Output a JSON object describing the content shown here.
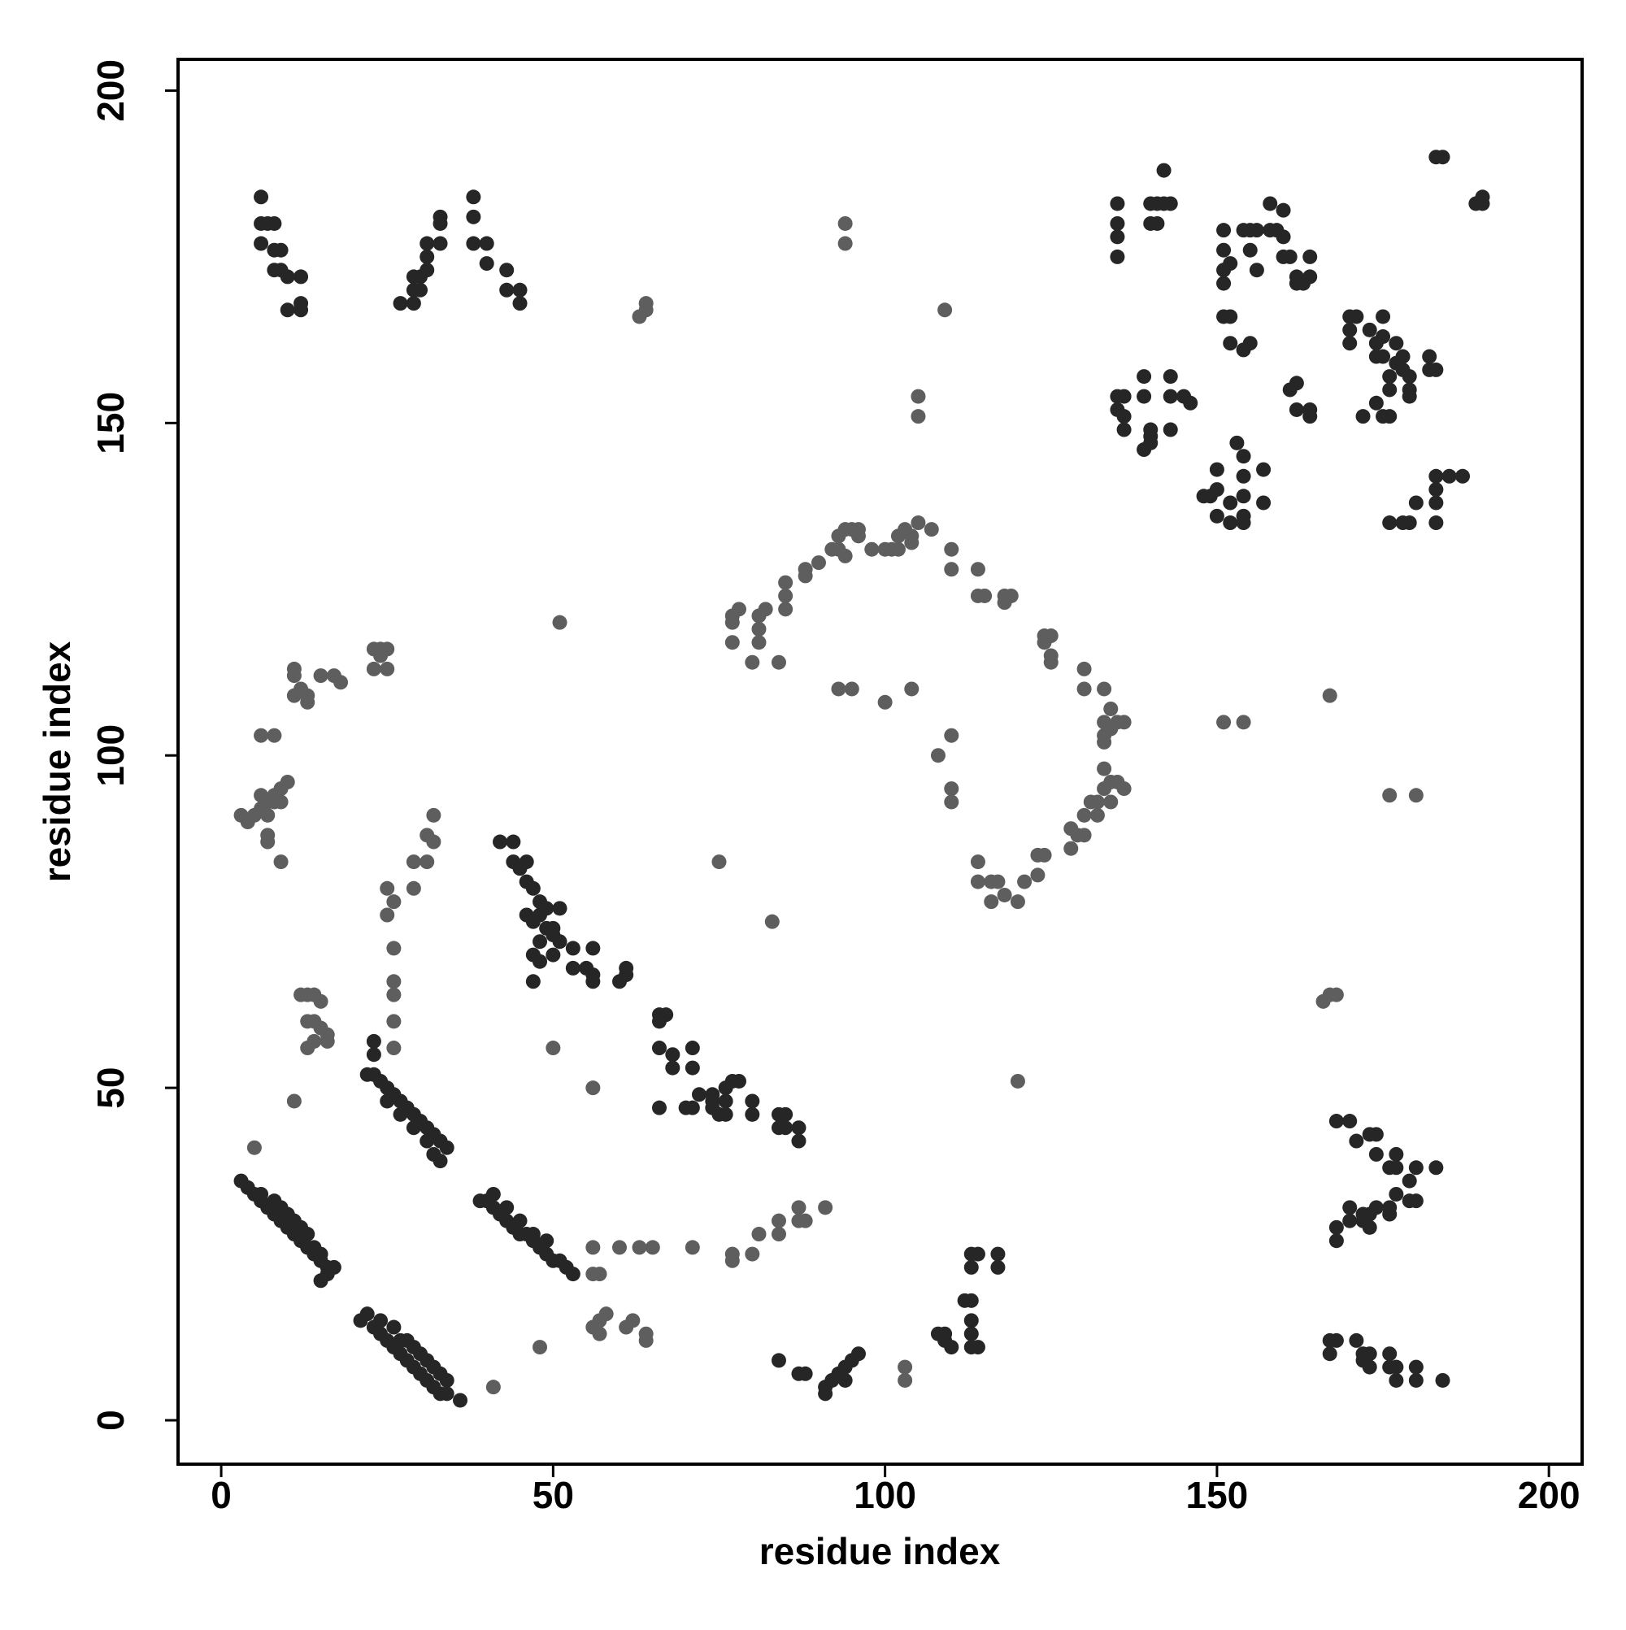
{
  "chart_data": {
    "type": "scatter",
    "xlabel": "residue index",
    "ylabel": "residue index",
    "xlim": [
      -6.5,
      205
    ],
    "ylim": [
      -6.6,
      204.7
    ],
    "xticks": [
      0,
      50,
      100,
      150,
      200
    ],
    "yticks": [
      0,
      50,
      100,
      150,
      200
    ],
    "series": [
      {
        "color": "#5e5e5e",
        "x": [
          77,
          78,
          77,
          77,
          81,
          81,
          81,
          82,
          85,
          85,
          85,
          88,
          88,
          90,
          92,
          93,
          93,
          94,
          95,
          96,
          96,
          94,
          98,
          100,
          101,
          102,
          102,
          103,
          104,
          104,
          105,
          107,
          110,
          110,
          114,
          114,
          115,
          118,
          118,
          119,
          124,
          124,
          125,
          125,
          125,
          130,
          130,
          133,
          134,
          133,
          133,
          134,
          135,
          136,
          133,
          133,
          133,
          134,
          135,
          136,
          131,
          132,
          134,
          130,
          132,
          128,
          129,
          130,
          128,
          124,
          123,
          123,
          121,
          120,
          118,
          117,
          116,
          116,
          114,
          114,
          80,
          84,
          93,
          95,
          100,
          104,
          108,
          110,
          110,
          110,
          75,
          83,
          3,
          4,
          5,
          6,
          6,
          7,
          7,
          8,
          8,
          9,
          9,
          10,
          7,
          7,
          9,
          6,
          8,
          11,
          11,
          12,
          11,
          13,
          13,
          15,
          17,
          18,
          23,
          24,
          25,
          23,
          25,
          24,
          12,
          13,
          14,
          15,
          13,
          14,
          15,
          16,
          16,
          14,
          13,
          11,
          25,
          26,
          25,
          29,
          29,
          31,
          31,
          32,
          32,
          26,
          26,
          26,
          26,
          26,
          50,
          56,
          120,
          63,
          64,
          64,
          94,
          94,
          109,
          105,
          105,
          51,
          56,
          60,
          63,
          65,
          71,
          77,
          77,
          80,
          81,
          84,
          84,
          87,
          88,
          91,
          87,
          56,
          57,
          58,
          61,
          62,
          64,
          64,
          57,
          56,
          57,
          48,
          41,
          5,
          151,
          154,
          167,
          176,
          180,
          166,
          167,
          168,
          103,
          103
        ],
        "y": [
          121,
          122,
          120,
          117,
          117,
          119,
          121,
          122,
          122,
          124,
          126,
          127,
          128,
          129,
          131,
          131,
          133,
          134,
          134,
          134,
          133,
          130,
          131,
          131,
          131,
          131,
          133,
          134,
          133,
          132,
          135,
          134,
          131,
          128,
          128,
          124,
          124,
          124,
          123,
          124,
          118,
          117,
          118,
          115,
          114,
          113,
          110,
          110,
          107,
          105,
          103,
          104,
          105,
          105,
          102,
          98,
          95,
          96,
          96,
          95,
          93,
          93,
          93,
          91,
          91,
          89,
          88,
          88,
          86,
          85,
          85,
          82,
          81,
          78,
          79,
          81,
          81,
          78,
          81,
          84,
          114,
          114,
          110,
          110,
          108,
          110,
          100,
          103,
          95,
          93,
          84,
          75,
          91,
          90,
          91,
          92,
          94,
          93,
          91,
          94,
          93,
          95,
          93,
          96,
          88,
          87,
          84,
          103,
          103,
          113,
          112,
          110,
          109,
          109,
          108,
          112,
          112,
          111,
          116,
          116,
          116,
          113,
          113,
          115,
          64,
          64,
          64,
          63,
          60,
          60,
          59,
          58,
          57,
          57,
          56,
          48,
          76,
          78,
          80,
          80,
          84,
          84,
          88,
          87,
          91,
          71,
          66,
          64,
          60,
          56,
          56,
          50,
          51,
          166,
          167,
          168,
          180,
          177,
          167,
          154,
          151,
          120,
          26,
          26,
          26,
          26,
          26,
          25,
          24,
          25,
          28,
          28,
          30,
          30,
          30,
          32,
          32,
          14,
          15,
          16,
          14,
          15,
          13,
          12,
          13,
          22,
          22,
          11,
          5,
          41,
          105,
          105,
          109,
          94,
          94,
          63,
          64,
          64,
          8,
          6
        ]
      },
      {
        "color": "#262626",
        "x": [
          3,
          4,
          5,
          6,
          7,
          8,
          9,
          10,
          11,
          12,
          13,
          14,
          15,
          16,
          17,
          6,
          8,
          9,
          10,
          11,
          12,
          13,
          14,
          15,
          16,
          15,
          21,
          22,
          23,
          24,
          25,
          26,
          27,
          28,
          29,
          30,
          31,
          32,
          33,
          34,
          36,
          24,
          26,
          27,
          28,
          29,
          30,
          31,
          32,
          33,
          34,
          23,
          24,
          25,
          26,
          27,
          28,
          29,
          30,
          31,
          32,
          33,
          34,
          33,
          32,
          25,
          27,
          29,
          31,
          22,
          23,
          23,
          39,
          40,
          41,
          42,
          43,
          44,
          45,
          46,
          47,
          48,
          49,
          50,
          51,
          52,
          53,
          41,
          43,
          45,
          47,
          49,
          84,
          87,
          88,
          91,
          92,
          93,
          94,
          94,
          95,
          96,
          91,
          108,
          109,
          110,
          109,
          113,
          114,
          113,
          112,
          113,
          113,
          113,
          114,
          117,
          117,
          113,
          6,
          6,
          7,
          8,
          6,
          8,
          9,
          8,
          9,
          10,
          12,
          10,
          12,
          12,
          27,
          29,
          29,
          29,
          30,
          30,
          31,
          31,
          31,
          33,
          33,
          33,
          38,
          38,
          38,
          40,
          40,
          43,
          43,
          45,
          45,
          42,
          44,
          44,
          45,
          46,
          46,
          47,
          48,
          46,
          47,
          48,
          49,
          49,
          48,
          50,
          50,
          51,
          51,
          47,
          48,
          50,
          47,
          53,
          53,
          55,
          56,
          56,
          56,
          60,
          61,
          61,
          66,
          66,
          67,
          66,
          68,
          68,
          71,
          71,
          66,
          70,
          71,
          72,
          74,
          74,
          74,
          75,
          76,
          76,
          77,
          76,
          78,
          80,
          80,
          84,
          84,
          85,
          85,
          87,
          87,
          135,
          135,
          135,
          135,
          140,
          141,
          140,
          141,
          142,
          142,
          143,
          135,
          136,
          135,
          136,
          136,
          139,
          139,
          140,
          140,
          140,
          139,
          143,
          143,
          143,
          145,
          146,
          148,
          149,
          150,
          150,
          150,
          152,
          152,
          154,
          154,
          154,
          154,
          153,
          154,
          157,
          157,
          151,
          151,
          151,
          151,
          152,
          154,
          155,
          155,
          156,
          156,
          158,
          158,
          159,
          160,
          160,
          160,
          161,
          162,
          162,
          163,
          164,
          164,
          151,
          152,
          152,
          154,
          155,
          161,
          162,
          162,
          164,
          164,
          170,
          170,
          170,
          171,
          173,
          174,
          174,
          175,
          175,
          175,
          176,
          176,
          177,
          177,
          176,
          175,
          172,
          174,
          178,
          178,
          179,
          179,
          179,
          182,
          182,
          183,
          178,
          179,
          180,
          183,
          183,
          183,
          183,
          185,
          187,
          183,
          184,
          189,
          190,
          190,
          176,
          168,
          170,
          171,
          173,
          174,
          174,
          176,
          177,
          177,
          179,
          180,
          183,
          168,
          168,
          170,
          170,
          172,
          172,
          173,
          174,
          173,
          176,
          176,
          177,
          179,
          180,
          167,
          167,
          168,
          171,
          172,
          172,
          173,
          173,
          176,
          176,
          177,
          177,
          180,
          180,
          184
        ],
        "y": [
          36,
          35,
          34,
          33,
          32,
          31,
          30,
          29,
          28,
          27,
          26,
          25,
          24,
          23,
          23,
          34,
          33,
          32,
          31,
          30,
          29,
          28,
          26,
          25,
          22,
          21,
          15,
          16,
          14,
          13,
          12,
          11,
          10,
          9,
          8,
          7,
          6,
          5,
          4,
          4,
          3,
          15,
          14,
          12,
          12,
          11,
          10,
          9,
          8,
          7,
          6,
          52,
          51,
          50,
          49,
          48,
          47,
          46,
          45,
          44,
          43,
          42,
          41,
          39,
          40,
          48,
          46,
          44,
          42,
          52,
          55,
          57,
          33,
          33,
          32,
          31,
          30,
          29,
          28,
          28,
          27,
          26,
          25,
          24,
          24,
          23,
          22,
          34,
          32,
          30,
          28,
          27,
          9,
          7,
          7,
          5,
          6,
          7,
          6,
          8,
          9,
          10,
          4,
          13,
          12,
          11,
          13,
          11,
          11,
          15,
          18,
          18,
          23,
          25,
          25,
          25,
          23,
          13,
          184,
          180,
          180,
          180,
          177,
          176,
          176,
          173,
          173,
          172,
          172,
          167,
          167,
          168,
          168,
          168,
          170,
          172,
          172,
          170,
          173,
          175,
          177,
          177,
          181,
          180,
          184,
          181,
          177,
          177,
          174,
          173,
          170,
          170,
          168,
          87,
          87,
          84,
          83,
          84,
          81,
          80,
          78,
          76,
          75,
          76,
          77,
          74,
          72,
          74,
          73,
          77,
          72,
          70,
          69,
          70,
          66,
          71,
          68,
          68,
          71,
          67,
          66,
          66,
          67,
          68,
          61,
          60,
          61,
          56,
          55,
          53,
          56,
          53,
          47,
          47,
          47,
          49,
          49,
          48,
          47,
          46,
          50,
          48,
          51,
          46,
          51,
          48,
          46,
          46,
          44,
          46,
          44,
          44,
          42,
          183,
          180,
          178,
          175,
          183,
          183,
          180,
          180,
          183,
          188,
          183,
          154,
          154,
          152,
          149,
          151,
          157,
          154,
          149,
          148,
          147,
          146,
          157,
          154,
          149,
          154,
          153,
          139,
          139,
          140,
          136,
          143,
          138,
          135,
          139,
          135,
          136,
          145,
          147,
          142,
          143,
          138,
          179,
          176,
          173,
          171,
          174,
          179,
          179,
          176,
          179,
          173,
          183,
          179,
          179,
          182,
          178,
          175,
          175,
          172,
          171,
          171,
          175,
          172,
          166,
          166,
          162,
          161,
          162,
          155,
          156,
          152,
          152,
          151,
          166,
          164,
          162,
          166,
          164,
          162,
          160,
          166,
          163,
          160,
          157,
          155,
          162,
          159,
          151,
          151,
          151,
          153,
          160,
          158,
          155,
          154,
          157,
          160,
          158,
          158,
          135,
          135,
          138,
          138,
          140,
          142,
          135,
          142,
          142,
          190,
          190,
          183,
          184,
          183,
          135,
          45,
          45,
          42,
          43,
          43,
          40,
          38,
          40,
          38,
          36,
          38,
          38,
          29,
          27,
          30,
          32,
          30,
          31,
          31,
          32,
          29,
          31,
          32,
          34,
          33,
          33,
          10,
          12,
          12,
          12,
          10,
          9,
          8,
          10,
          10,
          8,
          6,
          8,
          8,
          6,
          6
        ]
      }
    ]
  }
}
